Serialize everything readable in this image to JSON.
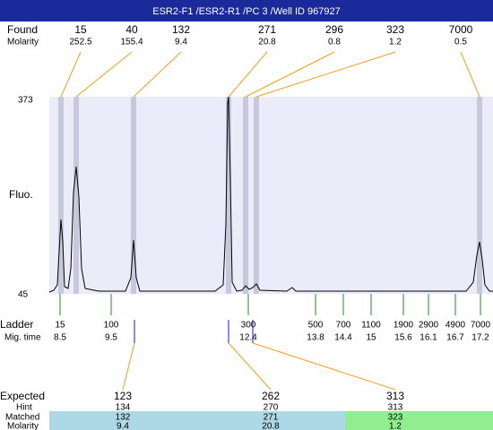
{
  "header": {
    "title": "ESR2-F1 /ESR2-R1 /PC 3 /Well ID 967927"
  },
  "found": {
    "label": "Found",
    "molarity_label": "Molarity",
    "peaks": [
      {
        "size": "15",
        "molarity": "252.5"
      },
      {
        "size": "40",
        "molarity": "155.4"
      },
      {
        "size": "132",
        "molarity": "9.4"
      },
      {
        "size": "271",
        "molarity": "20.8"
      },
      {
        "size": "296",
        "molarity": "0.8"
      },
      {
        "size": "323",
        "molarity": "1.2"
      },
      {
        "size": "7000",
        "molarity": "0.5"
      }
    ]
  },
  "plot": {
    "y_top": "373",
    "y_bottom": "45",
    "y_label": "Fluo."
  },
  "ladder": {
    "label": "Ladder",
    "time_label": "Mig. time",
    "bands": [
      {
        "size": "15",
        "time": "8.5"
      },
      {
        "size": "100",
        "time": "9.5"
      },
      {
        "size": "300",
        "time": "12.4"
      },
      {
        "size": "500",
        "time": "13.8"
      },
      {
        "size": "700",
        "time": "14.4"
      },
      {
        "size": "1100",
        "time": "15"
      },
      {
        "size": "1900",
        "time": "15.6"
      },
      {
        "size": "2900",
        "time": "16.1"
      },
      {
        "size": "4900",
        "time": "16.7"
      },
      {
        "size": "7000",
        "time": "17.2"
      }
    ]
  },
  "expected": {
    "label": "Expected",
    "hint_label": "Hint",
    "matched_label": "Matched",
    "molarity_label": "Molarity",
    "columns": [
      {
        "expected": "123",
        "hint": "134",
        "matched": "132",
        "molarity": "9.4"
      },
      {
        "expected": "262",
        "hint": "270",
        "matched": "271",
        "molarity": "20.8"
      },
      {
        "expected": "313",
        "hint": "313",
        "matched": "323",
        "molarity": "1.2"
      }
    ]
  }
}
